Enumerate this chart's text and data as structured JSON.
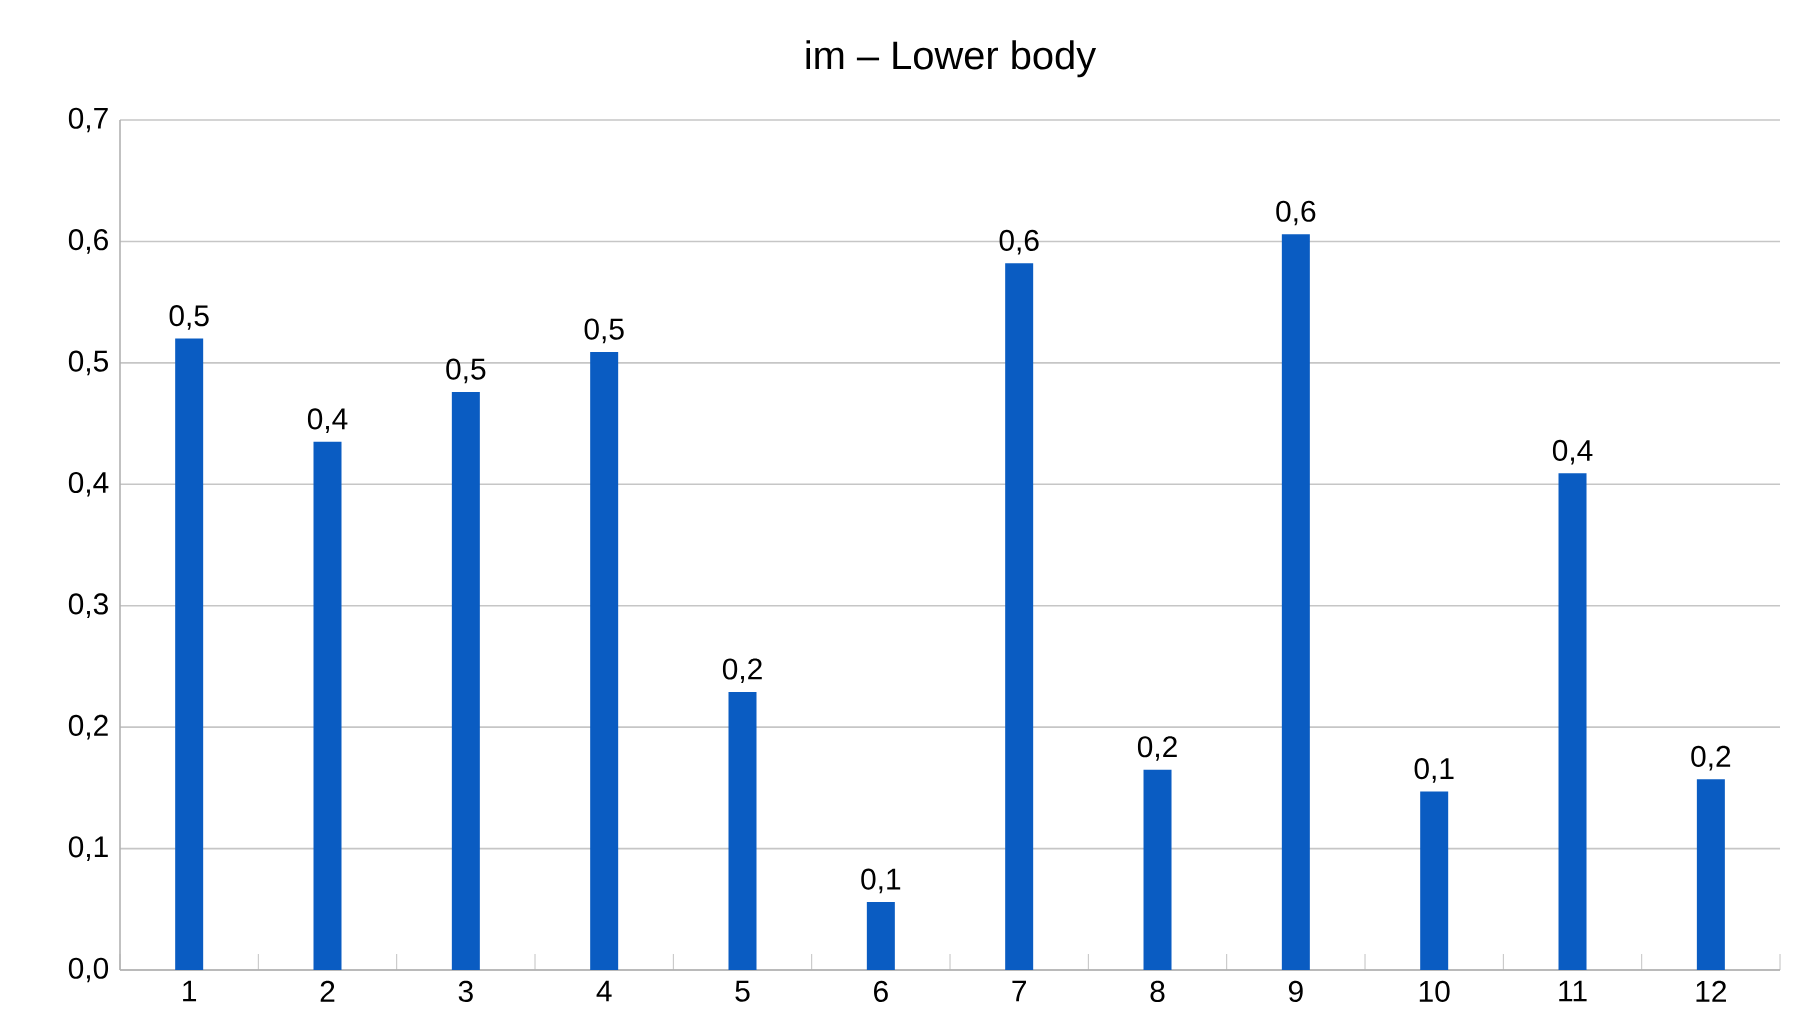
{
  "chart_data": {
    "type": "bar",
    "title": "im – Lower body",
    "categories": [
      "1",
      "2",
      "3",
      "4",
      "5",
      "6",
      "7",
      "8",
      "9",
      "10",
      "11",
      "12"
    ],
    "values": [
      0.52,
      0.435,
      0.476,
      0.509,
      0.229,
      0.056,
      0.582,
      0.165,
      0.606,
      0.147,
      0.409,
      0.157
    ],
    "value_labels": [
      "0,5",
      "0,4",
      "0,5",
      "0,5",
      "0,2",
      "0,1",
      "0,6",
      "0,2",
      "0,6",
      "0,1",
      "0,4",
      "0,2"
    ],
    "color": "#0a5cc2",
    "ylim": [
      0,
      0.7
    ],
    "yticks": [
      {
        "value": 0,
        "label": "0,0"
      },
      {
        "value": 0.1,
        "label": "0,1"
      },
      {
        "value": 0.2,
        "label": "0,2"
      },
      {
        "value": 0.3,
        "label": "0,3"
      },
      {
        "value": 0.4,
        "label": "0,4"
      },
      {
        "value": 0.5,
        "label": "0,5"
      },
      {
        "value": 0.6,
        "label": "0,6"
      },
      {
        "value": 0.7,
        "label": "0,7"
      }
    ],
    "grid": "y"
  }
}
